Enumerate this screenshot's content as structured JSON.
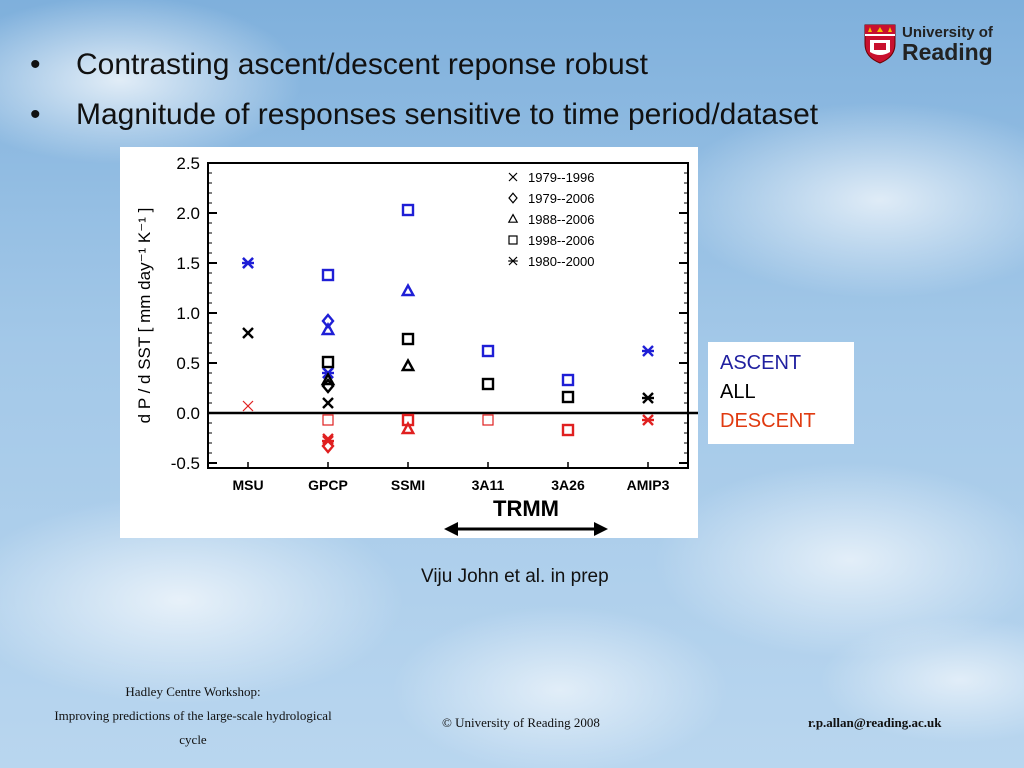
{
  "slide": {
    "bullets": [
      "Contrasting ascent/descent reponse robust",
      "Magnitude of responses sensitive to time period/dataset"
    ],
    "bullet_symbol": "•",
    "logo": {
      "line1": "University of",
      "line2": "Reading"
    },
    "legend_box": {
      "ascent": "ASCENT",
      "all": "ALL",
      "descent": "DESCENT"
    },
    "trmm_label": "TRMM",
    "credit": "Viju John et al. in prep",
    "footer": {
      "left_line1": "Hadley Centre Workshop:",
      "left_line2": "Improving predictions of the large-scale hydrological",
      "left_line3": "cycle",
      "middle": "© University of Reading 2008",
      "right": "r.p.allan@reading.ac.uk"
    }
  },
  "colors": {
    "ascent": "#1f1fd6",
    "all": "#000000",
    "descent": "#e02020",
    "descent_label": "#e03a10",
    "ascent_label": "#2020a0"
  },
  "chart_data": {
    "type": "scatter",
    "ylabel": "d P / d SST [ mm day⁻¹ K⁻¹ ]",
    "ylim": [
      -0.55,
      2.5
    ],
    "yticks": [
      -0.5,
      0.0,
      0.5,
      1.0,
      1.5,
      2.0,
      2.5
    ],
    "ytick_labels": [
      "-0.5",
      "0.0",
      "0.5",
      "1.0",
      "1.5",
      "2.0",
      "2.5"
    ],
    "categories": [
      "MSU",
      "GPCP",
      "SSMI",
      "3A11",
      "3A26",
      "AMIP3"
    ],
    "zero_line": true,
    "legend": [
      {
        "marker": "x",
        "label": "1979--1996"
      },
      {
        "marker": "diamond",
        "label": "1979--2006"
      },
      {
        "marker": "triangle",
        "label": "1988--2006"
      },
      {
        "marker": "square",
        "label": "1998--2006"
      },
      {
        "marker": "asterisk",
        "label": "1980--2000"
      }
    ],
    "legend_position": "top-right",
    "points": [
      {
        "category": "MSU",
        "period": "1979--1996",
        "regime": "ascent",
        "value": 1.5
      },
      {
        "category": "MSU",
        "period": "1980--2000",
        "regime": "ascent",
        "value": 1.5
      },
      {
        "category": "MSU",
        "period": "1979--1996",
        "regime": "all",
        "value": 0.8
      },
      {
        "category": "MSU",
        "period": "1979--1996",
        "regime": "descent",
        "value": 0.07
      },
      {
        "category": "GPCP",
        "period": "1998--2006",
        "regime": "ascent",
        "value": 1.38
      },
      {
        "category": "GPCP",
        "period": "1979--2006",
        "regime": "ascent",
        "value": 0.92
      },
      {
        "category": "GPCP",
        "period": "1988--2006",
        "regime": "ascent",
        "value": 0.83
      },
      {
        "category": "GPCP",
        "period": "1979--1996",
        "regime": "ascent",
        "value": 0.4
      },
      {
        "category": "GPCP",
        "period": "1980--2000",
        "regime": "ascent",
        "value": 0.4
      },
      {
        "category": "GPCP",
        "period": "1998--2006",
        "regime": "all",
        "value": 0.51
      },
      {
        "category": "GPCP",
        "period": "1988--2006",
        "regime": "all",
        "value": 0.33
      },
      {
        "category": "GPCP",
        "period": "1979--2006",
        "regime": "all",
        "value": 0.27
      },
      {
        "category": "GPCP",
        "period": "1979--1996",
        "regime": "all",
        "value": 0.1
      },
      {
        "category": "GPCP",
        "period": "1998--2006",
        "regime": "descent",
        "value": -0.07
      },
      {
        "category": "GPCP",
        "period": "1979--1996",
        "regime": "descent",
        "value": -0.26
      },
      {
        "category": "GPCP",
        "period": "1980--2000",
        "regime": "descent",
        "value": -0.28
      },
      {
        "category": "GPCP",
        "period": "1979--2006",
        "regime": "descent",
        "value": -0.33
      },
      {
        "category": "SSMI",
        "period": "1998--2006",
        "regime": "ascent",
        "value": 2.03
      },
      {
        "category": "SSMI",
        "period": "1988--2006",
        "regime": "ascent",
        "value": 1.22
      },
      {
        "category": "SSMI",
        "period": "1998--2006",
        "regime": "all",
        "value": 0.74
      },
      {
        "category": "SSMI",
        "period": "1988--2006",
        "regime": "all",
        "value": 0.47
      },
      {
        "category": "SSMI",
        "period": "1998--2006",
        "regime": "descent",
        "value": -0.07
      },
      {
        "category": "SSMI",
        "period": "1988--2006",
        "regime": "descent",
        "value": -0.16
      },
      {
        "category": "3A11",
        "period": "1998--2006",
        "regime": "ascent",
        "value": 0.62
      },
      {
        "category": "3A11",
        "period": "1998--2006",
        "regime": "all",
        "value": 0.29
      },
      {
        "category": "3A11",
        "period": "1998--2006",
        "regime": "descent",
        "value": -0.07
      },
      {
        "category": "3A26",
        "period": "1998--2006",
        "regime": "ascent",
        "value": 0.33
      },
      {
        "category": "3A26",
        "period": "1998--2006",
        "regime": "all",
        "value": 0.16
      },
      {
        "category": "3A26",
        "period": "1998--2006",
        "regime": "descent",
        "value": -0.17
      },
      {
        "category": "AMIP3",
        "period": "1980--2000",
        "regime": "ascent",
        "value": 0.62
      },
      {
        "category": "AMIP3",
        "period": "1980--2000",
        "regime": "all",
        "value": 0.15
      },
      {
        "category": "AMIP3",
        "period": "1980--2000",
        "regime": "descent",
        "value": -0.07
      }
    ]
  }
}
